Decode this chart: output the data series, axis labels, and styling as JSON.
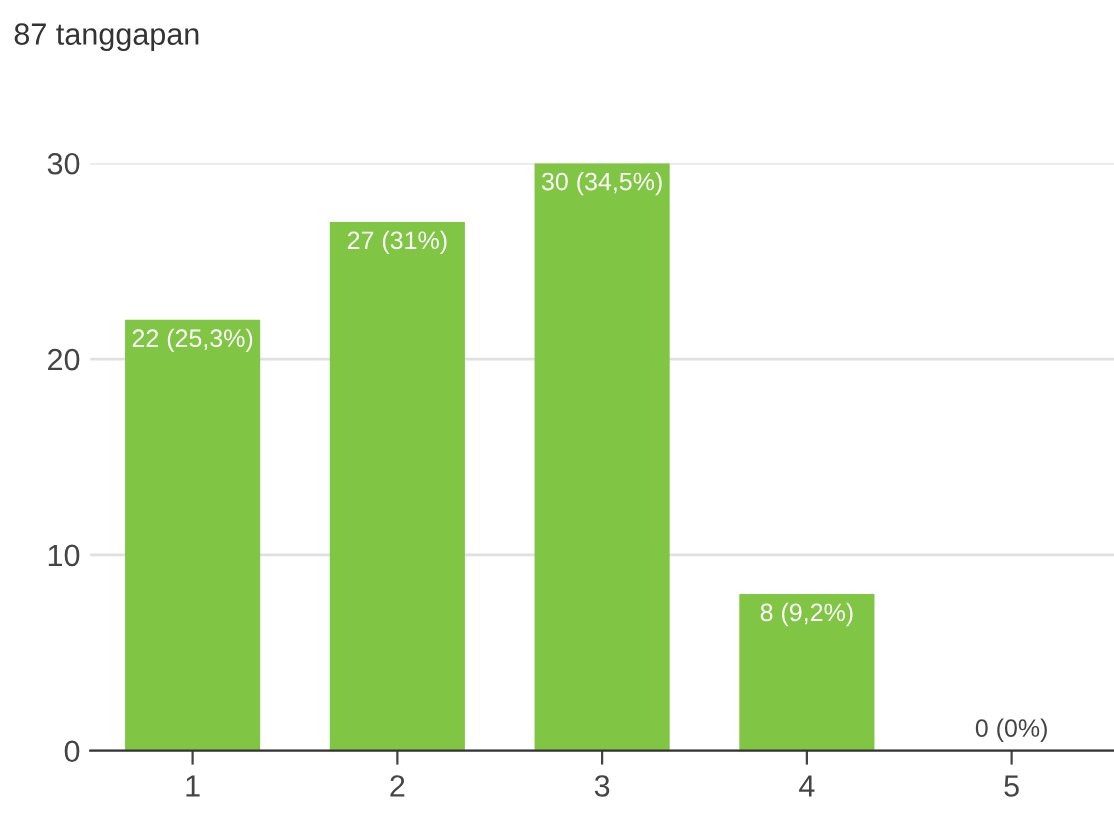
{
  "chart_data": {
    "type": "bar",
    "annotations": [
      "87 tanggapan"
    ],
    "categories": [
      "1",
      "2",
      "3",
      "4",
      "5"
    ],
    "values": [
      22,
      27,
      30,
      8,
      0
    ],
    "value_labels": [
      "22 (25,3%)",
      "27 (31%)",
      "30 (34,5%)",
      "8 (9,2%)",
      "0 (0%)"
    ],
    "color": "#80c644",
    "ylim": [
      0,
      30
    ],
    "yticks": [
      0,
      10,
      20,
      30
    ],
    "grid": "y"
  }
}
